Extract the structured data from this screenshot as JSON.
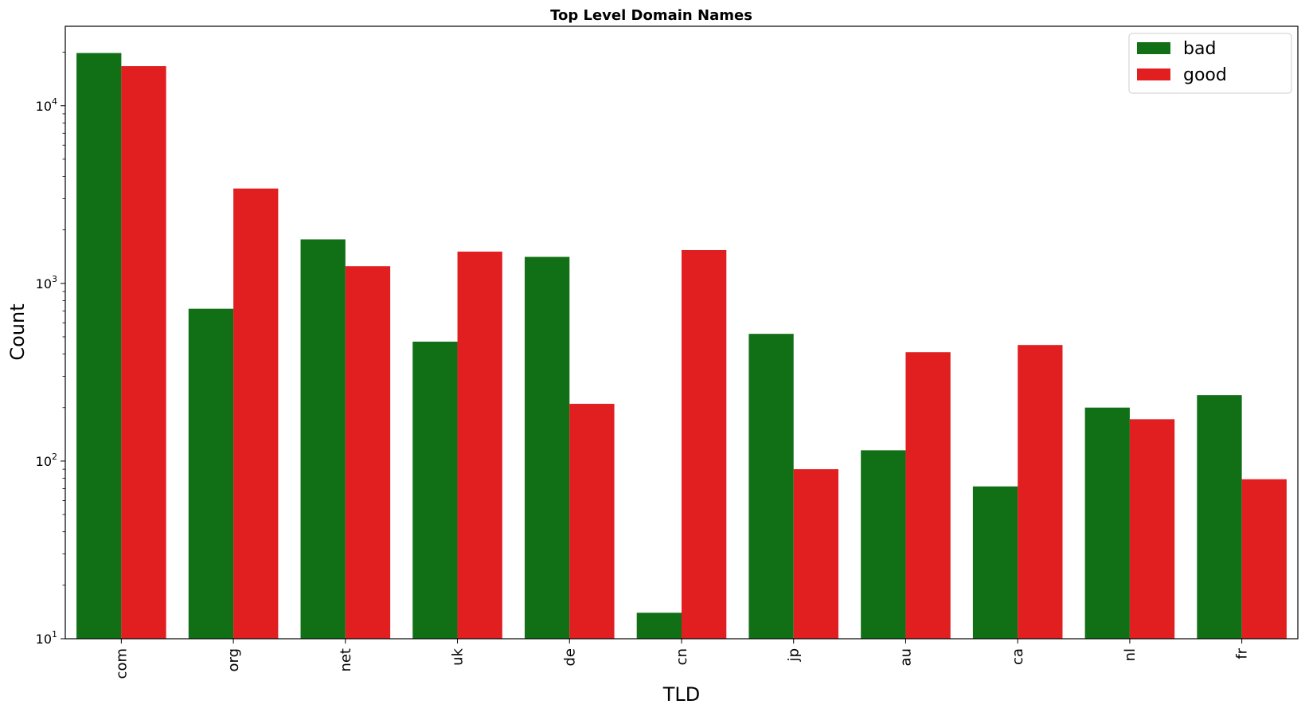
{
  "chart_data": {
    "type": "bar",
    "title": "Top Level Domain Names",
    "xlabel": "TLD",
    "ylabel": "Count",
    "yscale": "log",
    "ylim": [
      10,
      28000
    ],
    "categories": [
      "com",
      "org",
      "net",
      "uk",
      "de",
      "cn",
      "jp",
      "au",
      "ca",
      "nl",
      "fr"
    ],
    "series": [
      {
        "name": "bad",
        "color": "#117016",
        "values": [
          19800,
          720,
          1770,
          470,
          1410,
          14,
          520,
          115,
          72,
          200,
          235
        ]
      },
      {
        "name": "good",
        "color": "#e11f20",
        "values": [
          16700,
          3420,
          1250,
          1510,
          210,
          1540,
          90,
          410,
          450,
          172,
          79
        ]
      }
    ],
    "yticks": [
      {
        "value": 10,
        "base": "10",
        "exp": "1"
      },
      {
        "value": 100,
        "base": "10",
        "exp": "2"
      },
      {
        "value": 1000,
        "base": "10",
        "exp": "3"
      },
      {
        "value": 10000,
        "base": "10",
        "exp": "4"
      }
    ],
    "legend": {
      "position": "top-right",
      "entries": [
        "bad",
        "good"
      ]
    }
  }
}
